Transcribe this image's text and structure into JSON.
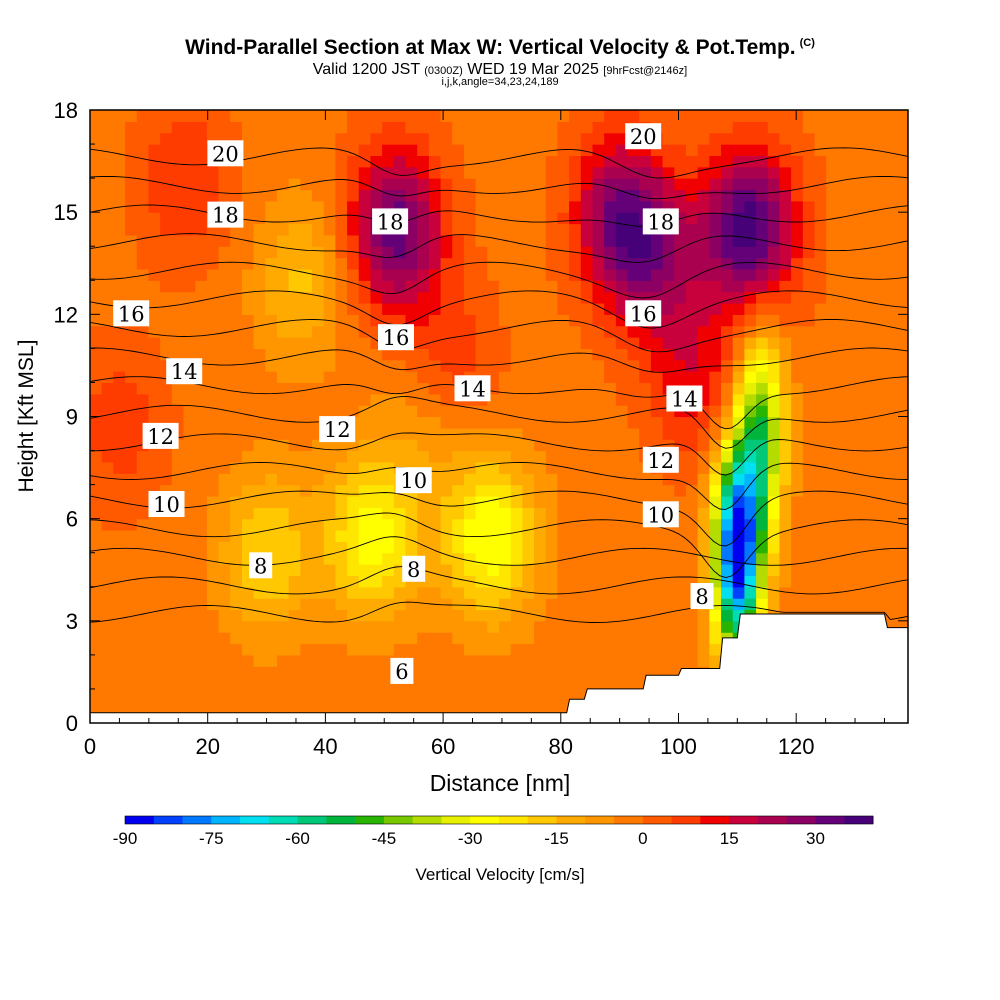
{
  "title": "Wind-Parallel Section at Max W: Vertical Velocity & Pot.Temp.",
  "title_mark": "(C)",
  "subtitle": {
    "valid": "Valid 1200 JST",
    "utc": "(0300Z)",
    "date": "WED 19 Mar 2025",
    "fcst": "[9hrFcst@2146z]"
  },
  "index_line": "i,j,k,angle=34,23,24,189",
  "chart_data": {
    "type": "heatmap",
    "xlabel": "Distance [nm]",
    "ylabel": "Height [Kft MSL]",
    "xlim": [
      0,
      139
    ],
    "ylim": [
      0,
      18
    ],
    "x_ticks": [
      0,
      20,
      40,
      60,
      80,
      100,
      120
    ],
    "y_ticks": [
      0,
      3,
      6,
      9,
      12,
      15,
      18
    ],
    "colorbar": {
      "label": "Vertical Velocity [cm/s]",
      "tick_labels": [
        "-90",
        "-75",
        "-60",
        "-45",
        "-30",
        "-15",
        "0",
        "15",
        "30"
      ],
      "range": [
        -90,
        40
      ],
      "colors": [
        "#0000f0",
        "#0040ff",
        "#0078ff",
        "#00b4ff",
        "#00e0f0",
        "#00dcb4",
        "#00c878",
        "#00b43c",
        "#28b400",
        "#78c800",
        "#b4dc00",
        "#e6f000",
        "#ffff00",
        "#ffe600",
        "#ffc800",
        "#ffaa00",
        "#ff9600",
        "#ff7800",
        "#ff5a00",
        "#ff3c00",
        "#f00000",
        "#c8003c",
        "#aa0050",
        "#8c0064",
        "#640078",
        "#460078"
      ]
    },
    "terrain_x": [
      0,
      80,
      81,
      81.5,
      84,
      84.5,
      94,
      94.5,
      100,
      100.5,
      107,
      107.5,
      110,
      110.5,
      135,
      135.5,
      139
    ],
    "terrain_y": [
      0.3,
      0.3,
      0.3,
      0.7,
      0.7,
      1.0,
      1.0,
      1.4,
      1.4,
      1.6,
      1.6,
      2.5,
      2.5,
      3.2,
      3.2,
      2.8,
      2.8
    ],
    "velocity_field": {
      "background": -2,
      "features": [
        {
          "x": 52,
          "y": 14.5,
          "peak": 35
        },
        {
          "x": 60,
          "y": 10.3,
          "peak": 20
        },
        {
          "x": 90,
          "y": 15.0,
          "peak": 28
        },
        {
          "x": 96,
          "y": 13.5,
          "peak": 22
        },
        {
          "x": 112,
          "y": 14.5,
          "peak": 40
        },
        {
          "x": 103,
          "y": 10.0,
          "peak": 15
        },
        {
          "x": 16,
          "y": 16.0,
          "peak": 12
        },
        {
          "x": 5,
          "y": 8.8,
          "peak": 10
        },
        {
          "x": 48,
          "y": 5.5,
          "peak": -26
        },
        {
          "x": 68,
          "y": 5.5,
          "peak": -28
        },
        {
          "x": 30,
          "y": 5.0,
          "peak": -18
        },
        {
          "x": 58,
          "y": 9.5,
          "peak": -16
        },
        {
          "x": 36,
          "y": 13.0,
          "peak": -14
        },
        {
          "x": 110,
          "y": 5.0,
          "peak": -90
        },
        {
          "x": 114,
          "y": 8.5,
          "peak": -45
        }
      ]
    },
    "isentropes": {
      "levels": [
        5,
        6,
        7,
        8,
        9,
        10,
        11,
        12,
        13,
        14,
        15,
        16,
        17,
        18,
        19,
        20,
        21
      ],
      "labeled_levels": [
        "6",
        "8",
        "10",
        "12",
        "14",
        "16",
        "18",
        "20"
      ],
      "labels": [
        {
          "text": "20",
          "x": 23,
          "y": 16.7
        },
        {
          "text": "20",
          "x": 94,
          "y": 17.2
        },
        {
          "text": "18",
          "x": 23,
          "y": 14.9
        },
        {
          "text": "18",
          "x": 51,
          "y": 14.7
        },
        {
          "text": "18",
          "x": 97,
          "y": 14.7
        },
        {
          "text": "16",
          "x": 7,
          "y": 12.0
        },
        {
          "text": "16",
          "x": 52,
          "y": 11.3
        },
        {
          "text": "16",
          "x": 94,
          "y": 12.0
        },
        {
          "text": "14",
          "x": 16,
          "y": 10.3
        },
        {
          "text": "14",
          "x": 65,
          "y": 9.8
        },
        {
          "text": "14",
          "x": 101,
          "y": 9.5
        },
        {
          "text": "12",
          "x": 12,
          "y": 8.4
        },
        {
          "text": "12",
          "x": 42,
          "y": 8.6
        },
        {
          "text": "12",
          "x": 97,
          "y": 7.7
        },
        {
          "text": "10",
          "x": 13,
          "y": 6.4
        },
        {
          "text": "10",
          "x": 55,
          "y": 7.1
        },
        {
          "text": "10",
          "x": 97,
          "y": 6.1
        },
        {
          "text": "8",
          "x": 29,
          "y": 4.6
        },
        {
          "text": "8",
          "x": 55,
          "y": 4.5
        },
        {
          "text": "8",
          "x": 104,
          "y": 3.7
        },
        {
          "text": "6",
          "x": 53,
          "y": 1.5
        }
      ]
    }
  }
}
